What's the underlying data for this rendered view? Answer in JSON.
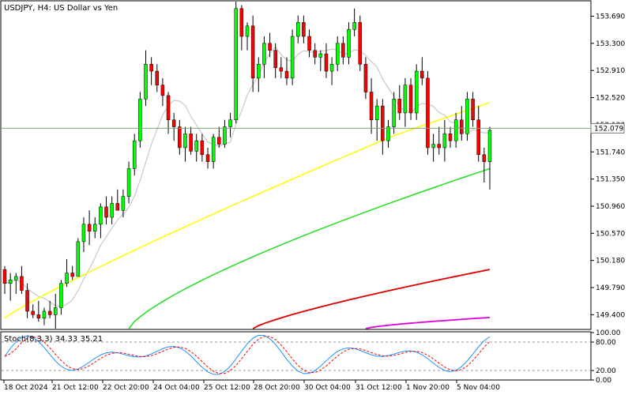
{
  "chart_data": {
    "type": "candlestick",
    "title": "USDJPY, H4:  US Dollar vs Yen",
    "current_price": "152.079",
    "ylim": [
      149.2,
      153.9
    ],
    "y_ticks": [
      "153.690",
      "153.300",
      "152.910",
      "152.520",
      "152.130",
      "151.740",
      "151.350",
      "150.960",
      "150.570",
      "150.180",
      "149.790",
      "149.400"
    ],
    "x_ticks": [
      "18 Oct 2024",
      "21 Oct 12:00",
      "22 Oct 20:00",
      "24 Oct 04:00",
      "25 Oct 12:00",
      "28 Oct 20:00",
      "30 Oct 04:00",
      "31 Oct 12:00",
      "1 Nov 20:00",
      "5 Nov 04:00"
    ],
    "colors": {
      "bull": "#00ff00",
      "bear": "#ff0000",
      "ma_fast": "#c8c8c8",
      "ma_slow": "#ffff00",
      "ma_100": "#22dd22",
      "ma_200": "#dd0000",
      "ma_300": "#dd00dd",
      "stoch_main": "#1e90ff",
      "stoch_signal": "#ff0000",
      "grid": "#cccccc"
    },
    "candles": [
      [
        150.05,
        150.1,
        149.7,
        149.85
      ],
      [
        149.85,
        150.0,
        149.6,
        149.9
      ],
      [
        149.9,
        150.0,
        149.7,
        149.95
      ],
      [
        149.95,
        150.1,
        149.7,
        149.75
      ],
      [
        149.75,
        149.85,
        149.35,
        149.45
      ],
      [
        149.45,
        149.55,
        149.35,
        149.4
      ],
      [
        149.4,
        149.6,
        149.3,
        149.35
      ],
      [
        149.35,
        149.5,
        149.25,
        149.45
      ],
      [
        149.45,
        149.6,
        149.35,
        149.4
      ],
      [
        149.4,
        149.7,
        149.2,
        149.5
      ],
      [
        149.5,
        149.9,
        149.4,
        149.85
      ],
      [
        149.85,
        150.2,
        149.8,
        150.0
      ],
      [
        150.0,
        150.1,
        149.9,
        149.95
      ],
      [
        149.95,
        150.5,
        149.95,
        150.45
      ],
      [
        150.45,
        150.8,
        150.3,
        150.7
      ],
      [
        150.7,
        150.9,
        150.4,
        150.6
      ],
      [
        150.6,
        150.8,
        150.5,
        150.7
      ],
      [
        150.7,
        151.0,
        150.5,
        150.95
      ],
      [
        150.95,
        151.1,
        150.7,
        150.8
      ],
      [
        150.8,
        151.1,
        150.7,
        151.0
      ],
      [
        151.0,
        151.2,
        150.9,
        150.9
      ],
      [
        150.9,
        151.2,
        150.8,
        151.1
      ],
      [
        151.1,
        151.6,
        151.0,
        151.5
      ],
      [
        151.5,
        152.0,
        151.4,
        151.9
      ],
      [
        151.9,
        152.6,
        151.8,
        152.5
      ],
      [
        152.5,
        153.2,
        152.4,
        153.0
      ],
      [
        153.0,
        153.1,
        152.7,
        152.9
      ],
      [
        152.9,
        153.0,
        152.6,
        152.7
      ],
      [
        152.7,
        152.8,
        152.4,
        152.55
      ],
      [
        152.55,
        152.6,
        152.0,
        152.2
      ],
      [
        152.2,
        152.3,
        151.9,
        152.1
      ],
      [
        152.1,
        152.2,
        151.7,
        151.8
      ],
      [
        151.8,
        152.1,
        151.6,
        152.0
      ],
      [
        152.0,
        152.1,
        151.7,
        151.75
      ],
      [
        151.75,
        152.0,
        151.6,
        151.9
      ],
      [
        151.9,
        152.0,
        151.6,
        151.7
      ],
      [
        151.7,
        151.8,
        151.5,
        151.6
      ],
      [
        151.6,
        152.0,
        151.5,
        151.95
      ],
      [
        151.95,
        152.1,
        151.8,
        151.85
      ],
      [
        151.85,
        152.2,
        151.8,
        152.1
      ],
      [
        152.1,
        152.3,
        151.95,
        152.2
      ],
      [
        152.2,
        153.9,
        152.15,
        153.8
      ],
      [
        153.8,
        153.85,
        153.2,
        153.4
      ],
      [
        153.4,
        153.6,
        153.2,
        153.55
      ],
      [
        153.55,
        153.7,
        152.6,
        152.8
      ],
      [
        152.8,
        153.1,
        152.6,
        153.0
      ],
      [
        153.0,
        153.4,
        152.8,
        153.3
      ],
      [
        153.3,
        153.45,
        153.1,
        153.2
      ],
      [
        153.2,
        153.3,
        152.8,
        152.95
      ],
      [
        152.95,
        153.1,
        152.8,
        152.9
      ],
      [
        152.9,
        153.1,
        152.7,
        152.8
      ],
      [
        152.8,
        153.5,
        152.7,
        153.4
      ],
      [
        153.4,
        153.7,
        153.3,
        153.6
      ],
      [
        153.6,
        153.7,
        153.3,
        153.4
      ],
      [
        153.4,
        153.5,
        153.1,
        153.2
      ],
      [
        153.2,
        153.3,
        153.0,
        153.1
      ],
      [
        153.1,
        153.2,
        152.9,
        153.15
      ],
      [
        153.15,
        153.3,
        152.8,
        152.9
      ],
      [
        152.9,
        153.1,
        152.7,
        153.0
      ],
      [
        153.0,
        153.4,
        152.9,
        153.3
      ],
      [
        153.3,
        153.4,
        153.0,
        153.1
      ],
      [
        153.1,
        153.6,
        153.0,
        153.5
      ],
      [
        153.5,
        153.8,
        153.4,
        153.6
      ],
      [
        153.6,
        153.7,
        152.9,
        153.0
      ],
      [
        153.0,
        153.1,
        152.5,
        152.6
      ],
      [
        152.6,
        152.8,
        152.0,
        152.2
      ],
      [
        152.2,
        152.5,
        151.9,
        152.4
      ],
      [
        152.4,
        152.5,
        151.7,
        151.9
      ],
      [
        151.9,
        152.2,
        151.8,
        152.1
      ],
      [
        152.1,
        152.6,
        152.0,
        152.5
      ],
      [
        152.5,
        152.7,
        152.2,
        152.3
      ],
      [
        152.3,
        152.8,
        152.1,
        152.7
      ],
      [
        152.7,
        152.8,
        152.2,
        152.3
      ],
      [
        152.3,
        153.0,
        152.2,
        152.9
      ],
      [
        152.9,
        153.1,
        152.7,
        152.8
      ],
      [
        152.8,
        152.9,
        151.7,
        151.8
      ],
      [
        151.8,
        152.0,
        151.6,
        151.85
      ],
      [
        151.85,
        152.1,
        151.7,
        151.8
      ],
      [
        151.8,
        152.2,
        151.6,
        152.0
      ],
      [
        152.0,
        152.1,
        151.8,
        151.9
      ],
      [
        151.9,
        152.3,
        151.8,
        152.2
      ],
      [
        152.2,
        152.4,
        151.9,
        152.0
      ],
      [
        152.0,
        152.6,
        151.9,
        152.5
      ],
      [
        152.5,
        152.6,
        152.1,
        152.2
      ],
      [
        152.2,
        152.4,
        151.6,
        151.7
      ],
      [
        151.7,
        151.8,
        151.3,
        151.6
      ],
      [
        151.6,
        152.1,
        151.2,
        152.05
      ]
    ],
    "stoch_label": "Stoch(8,3,3)  34.33  35.21",
    "stoch_ticks": [
      "100.00",
      "80.00",
      "20.00",
      "0.00"
    ]
  }
}
